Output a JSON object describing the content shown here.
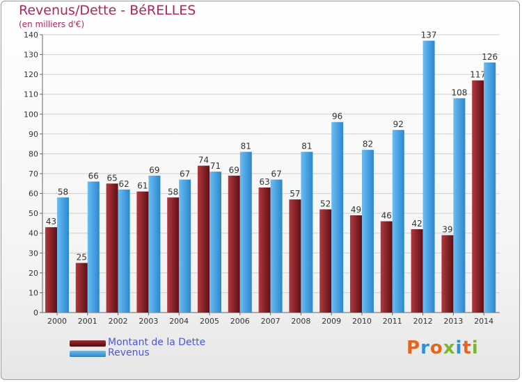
{
  "chart_data": {
    "type": "bar",
    "title": "Revenus/Dette - BéRELLES",
    "subtitle": "(en milliers d'€)",
    "categories": [
      "2000",
      "2001",
      "2002",
      "2003",
      "2004",
      "2005",
      "2006",
      "2007",
      "2008",
      "2009",
      "2010",
      "2011",
      "2012",
      "2013",
      "2014"
    ],
    "series": [
      {
        "name": "Montant de la Dette",
        "color": "#7a1a1f",
        "values": [
          43,
          25,
          65,
          61,
          58,
          74,
          69,
          63,
          57,
          52,
          49,
          46,
          42,
          39,
          117
        ]
      },
      {
        "name": "Revenus",
        "color": "#3f9fe3",
        "values": [
          58,
          66,
          62,
          69,
          67,
          71,
          81,
          67,
          81,
          96,
          82,
          92,
          137,
          108,
          126
        ]
      }
    ],
    "ylim": [
      0,
      140
    ],
    "yticks": [
      0,
      10,
      20,
      30,
      40,
      50,
      60,
      70,
      80,
      90,
      100,
      110,
      120,
      130,
      140
    ],
    "grid": true,
    "legend": "bottom-left"
  },
  "logo_text": "Proxiti",
  "colors": {
    "title": "#b2245c",
    "legend_text": "#4a55e0",
    "grid": "#cfcfcf"
  }
}
